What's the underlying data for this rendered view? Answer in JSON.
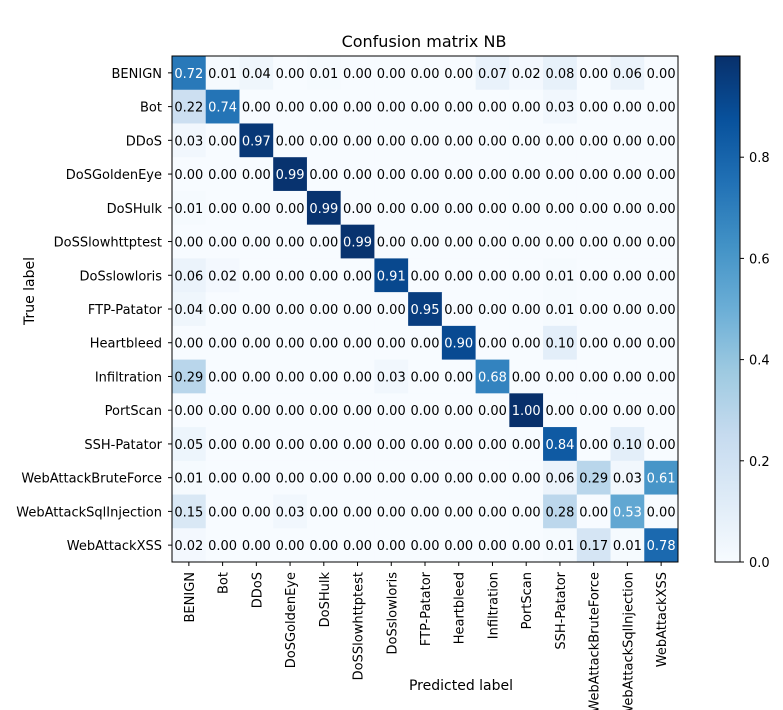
{
  "chart_data": {
    "type": "heatmap",
    "title": "Confusion matrix NB",
    "xlabel": "Predicted label",
    "ylabel": "True label",
    "labels": [
      "BENIGN",
      "Bot",
      "DDoS",
      "DoSGoldenEye",
      "DoSHulk",
      "DoSSlowhttptest",
      "DoSslowloris",
      "FTP-Patator",
      "Heartbleed",
      "Infiltration",
      "PortScan",
      "SSH-Patator",
      "WebAttackBruteForce",
      "WebAttackSqlInjection",
      "WebAttackXSS"
    ],
    "matrix": [
      [
        0.72,
        0.01,
        0.04,
        0.0,
        0.01,
        0.0,
        0.0,
        0.0,
        0.0,
        0.07,
        0.02,
        0.08,
        0.0,
        0.06,
        0.0
      ],
      [
        0.22,
        0.74,
        0.0,
        0.0,
        0.0,
        0.0,
        0.0,
        0.0,
        0.0,
        0.0,
        0.0,
        0.03,
        0.0,
        0.0,
        0.0
      ],
      [
        0.03,
        0.0,
        0.97,
        0.0,
        0.0,
        0.0,
        0.0,
        0.0,
        0.0,
        0.0,
        0.0,
        0.0,
        0.0,
        0.0,
        0.0
      ],
      [
        0.0,
        0.0,
        0.0,
        0.99,
        0.0,
        0.0,
        0.0,
        0.0,
        0.0,
        0.0,
        0.0,
        0.0,
        0.0,
        0.0,
        0.0
      ],
      [
        0.01,
        0.0,
        0.0,
        0.0,
        0.99,
        0.0,
        0.0,
        0.0,
        0.0,
        0.0,
        0.0,
        0.0,
        0.0,
        0.0,
        0.0
      ],
      [
        0.0,
        0.0,
        0.0,
        0.0,
        0.0,
        0.99,
        0.0,
        0.0,
        0.0,
        0.0,
        0.0,
        0.0,
        0.0,
        0.0,
        0.0
      ],
      [
        0.06,
        0.02,
        0.0,
        0.0,
        0.0,
        0.0,
        0.91,
        0.0,
        0.0,
        0.0,
        0.0,
        0.01,
        0.0,
        0.0,
        0.0
      ],
      [
        0.04,
        0.0,
        0.0,
        0.0,
        0.0,
        0.0,
        0.0,
        0.95,
        0.0,
        0.0,
        0.0,
        0.01,
        0.0,
        0.0,
        0.0
      ],
      [
        0.0,
        0.0,
        0.0,
        0.0,
        0.0,
        0.0,
        0.0,
        0.0,
        0.9,
        0.0,
        0.0,
        0.1,
        0.0,
        0.0,
        0.0
      ],
      [
        0.29,
        0.0,
        0.0,
        0.0,
        0.0,
        0.0,
        0.03,
        0.0,
        0.0,
        0.68,
        0.0,
        0.0,
        0.0,
        0.0,
        0.0
      ],
      [
        0.0,
        0.0,
        0.0,
        0.0,
        0.0,
        0.0,
        0.0,
        0.0,
        0.0,
        0.0,
        1.0,
        0.0,
        0.0,
        0.0,
        0.0
      ],
      [
        0.05,
        0.0,
        0.0,
        0.0,
        0.0,
        0.0,
        0.0,
        0.0,
        0.0,
        0.0,
        0.0,
        0.84,
        0.0,
        0.1,
        0.0
      ],
      [
        0.01,
        0.0,
        0.0,
        0.0,
        0.0,
        0.0,
        0.0,
        0.0,
        0.0,
        0.0,
        0.0,
        0.06,
        0.29,
        0.03,
        0.61
      ],
      [
        0.15,
        0.0,
        0.0,
        0.03,
        0.0,
        0.0,
        0.0,
        0.0,
        0.0,
        0.0,
        0.0,
        0.28,
        0.0,
        0.53,
        0.0
      ],
      [
        0.02,
        0.0,
        0.0,
        0.0,
        0.0,
        0.0,
        0.0,
        0.0,
        0.0,
        0.0,
        0.0,
        0.01,
        0.17,
        0.01,
        0.78
      ]
    ],
    "colormap": "Blues",
    "colorbar": {
      "min": 0.0,
      "max": 1.0,
      "ticks": [
        0.0,
        0.2,
        0.4,
        0.6,
        0.8
      ]
    },
    "text_threshold": 0.5
  }
}
